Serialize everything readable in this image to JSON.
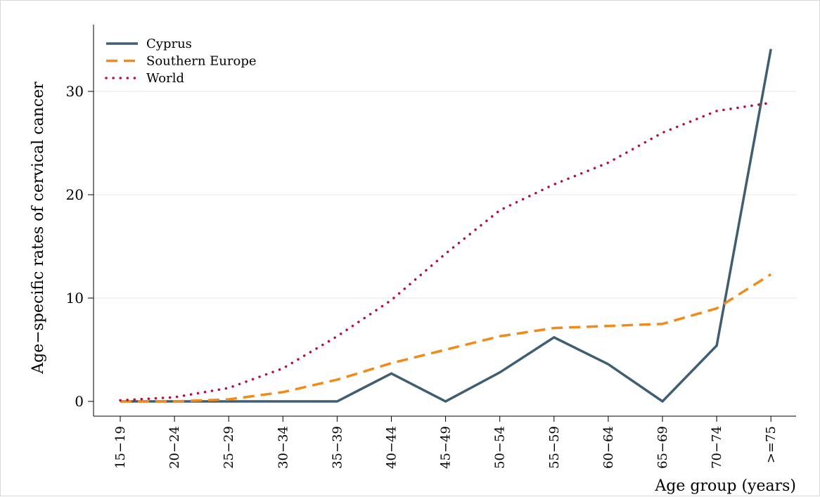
{
  "chart_data": {
    "type": "line",
    "title": "",
    "xlabel": "Age group (years)",
    "ylabel": "Age−specific rates of cervical cancer",
    "categories": [
      "15−19",
      "20−24",
      "25−29",
      "30−34",
      "35−39",
      "40−44",
      "45−49",
      "50−54",
      "55−59",
      "60−64",
      "65−69",
      "70−74",
      ">=75"
    ],
    "yticks": [
      0,
      10,
      20,
      30
    ],
    "ylim": [
      -1.4,
      36.5
    ],
    "grid": true,
    "legend_position": "top-left",
    "series": [
      {
        "name": "Cyprus",
        "color": "#3f5e72",
        "dash": "solid",
        "values": [
          0,
          0,
          0,
          0,
          0,
          2.7,
          0,
          2.8,
          6.2,
          3.6,
          0,
          5.4,
          34.1
        ]
      },
      {
        "name": "Southern Europe",
        "color": "#f28a1a",
        "dash": "dashed",
        "values": [
          0,
          0,
          0.2,
          0.9,
          2.1,
          3.7,
          5.0,
          6.3,
          7.1,
          7.3,
          7.5,
          9.0,
          12.3
        ]
      },
      {
        "name": "World",
        "color": "#b0103f",
        "dash": "dotted",
        "values": [
          0.1,
          0.4,
          1.3,
          3.2,
          6.3,
          9.8,
          14.3,
          18.5,
          21.0,
          23.1,
          26.0,
          28.1,
          28.9
        ]
      }
    ]
  }
}
